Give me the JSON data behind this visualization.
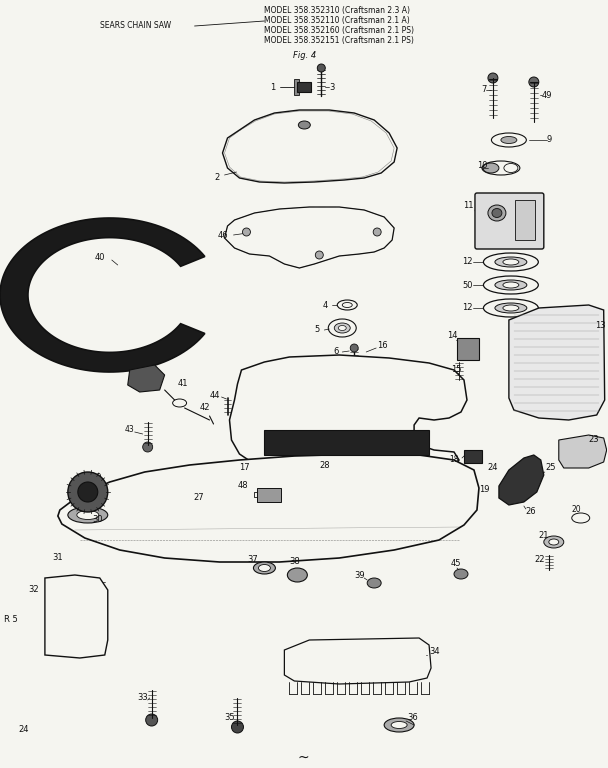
{
  "background_color": "#f5f5f0",
  "line_color": "#111111",
  "text_color": "#111111",
  "title_lines": [
    "MODEL 358.352310 (Craftsman 2.3 A)",
    "MODEL 358.352110 (Craftsman 2.1 A)",
    "MODEL 358.352160 (Craftsman 2.1 PS)",
    "MODEL 358.352151 (Craftsman 2.1 PS)"
  ],
  "sears_label": "SEARS CHAIN SAW",
  "fig_label": "Fig. 4",
  "r5_label": "R 5",
  "p24_label": "24"
}
